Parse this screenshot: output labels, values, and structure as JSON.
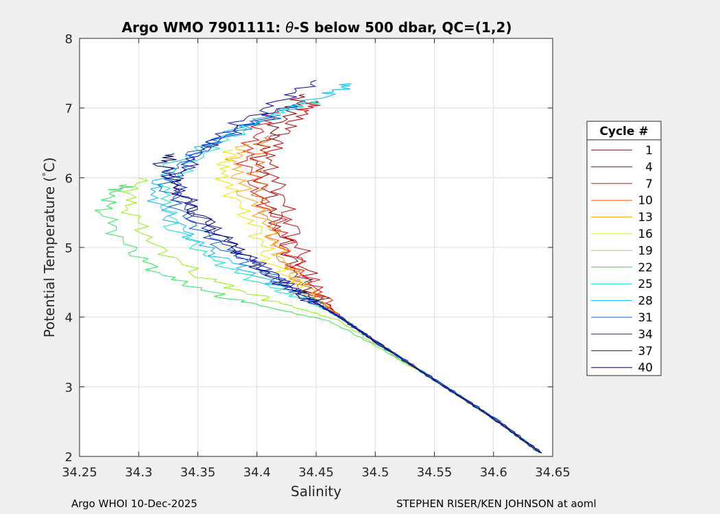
{
  "chart_data": {
    "type": "line",
    "title": "Argo WMO 7901111: θ-S below 500 dbar,  QC=(1,2)",
    "title_parts": {
      "prefix": "Argo WMO 7901111: ",
      "theta": "θ",
      "suffix": "-S below 500 dbar,  QC=(1,2)"
    },
    "xlabel": "Salinity",
    "ylabel": "Potential Temperature (",
    "ylabel_degree": "°",
    "ylabel_unit": "C)",
    "xlim": [
      34.25,
      34.65
    ],
    "ylim": [
      2,
      8
    ],
    "xticks": [
      34.25,
      34.3,
      34.35,
      34.4,
      34.45,
      34.5,
      34.55,
      34.6,
      34.65
    ],
    "xtick_labels": [
      "34.25",
      "34.3",
      "34.35",
      "34.4",
      "34.45",
      "34.5",
      "34.55",
      "34.6",
      "34.65"
    ],
    "yticks": [
      2,
      3,
      4,
      5,
      6,
      7,
      8
    ],
    "ytick_labels": [
      "2",
      "3",
      "4",
      "5",
      "6",
      "7",
      "8"
    ],
    "grid": true,
    "legend_placement": "outside-right",
    "legend_title": "Cycle #",
    "legend": [
      {
        "label": "1",
        "color": "#7f0000"
      },
      {
        "label": "4",
        "color": "#c40000"
      },
      {
        "label": "7",
        "color": "#ff0000"
      },
      {
        "label": "10",
        "color": "#ff5a00"
      },
      {
        "label": "13",
        "color": "#ffa000"
      },
      {
        "label": "16",
        "color": "#e6e600"
      },
      {
        "label": "19",
        "color": "#8cf000"
      },
      {
        "label": "22",
        "color": "#28e650"
      },
      {
        "label": "25",
        "color": "#00e6c8"
      },
      {
        "label": "28",
        "color": "#00b4ff"
      },
      {
        "label": "31",
        "color": "#0064dc"
      },
      {
        "label": "34",
        "color": "#0a28d2"
      },
      {
        "label": "37",
        "color": "#0a0aa0"
      },
      {
        "label": "40",
        "color": "#000064"
      }
    ],
    "series": [
      {
        "name": "1",
        "color": "#7f0000",
        "x": [
          34.64,
          34.6,
          34.55,
          34.5,
          34.47,
          34.45,
          34.43,
          34.42,
          34.41,
          34.4,
          34.41,
          34.43,
          34.44
        ],
        "y": [
          2.05,
          2.55,
          3.1,
          3.65,
          4.0,
          4.3,
          4.7,
          5.2,
          5.7,
          6.2,
          6.6,
          7.0,
          7.2
        ]
      },
      {
        "name": "4",
        "color": "#c40000",
        "x": [
          34.64,
          34.6,
          34.55,
          34.5,
          34.47,
          34.45,
          34.44,
          34.43,
          34.42,
          34.41,
          34.42,
          34.44,
          34.45
        ],
        "y": [
          2.05,
          2.55,
          3.1,
          3.65,
          4.0,
          4.35,
          4.75,
          5.25,
          5.75,
          6.25,
          6.6,
          6.95,
          7.1
        ]
      },
      {
        "name": "7",
        "color": "#ff0000",
        "x": [
          34.64,
          34.6,
          34.55,
          34.5,
          34.47,
          34.45,
          34.43,
          34.42,
          34.4,
          34.39,
          34.4,
          34.42
        ],
        "y": [
          2.05,
          2.55,
          3.1,
          3.65,
          4.0,
          4.4,
          4.85,
          5.3,
          5.8,
          6.3,
          6.7,
          7.0
        ]
      },
      {
        "name": "10",
        "color": "#ff5a00",
        "x": [
          34.64,
          34.6,
          34.55,
          34.5,
          34.47,
          34.44,
          34.42,
          34.41,
          34.4,
          34.4,
          34.41
        ],
        "y": [
          2.05,
          2.55,
          3.1,
          3.65,
          4.0,
          4.4,
          4.9,
          5.4,
          5.9,
          6.3,
          6.6
        ]
      },
      {
        "name": "13",
        "color": "#ffa000",
        "x": [
          34.64,
          34.6,
          34.55,
          34.5,
          34.47,
          34.44,
          34.42,
          34.41,
          34.39,
          34.38,
          34.39
        ],
        "y": [
          2.05,
          2.55,
          3.1,
          3.65,
          4.0,
          4.4,
          4.85,
          5.3,
          5.8,
          6.2,
          6.5
        ]
      },
      {
        "name": "16",
        "color": "#e6e600",
        "x": [
          34.64,
          34.6,
          34.55,
          34.5,
          34.47,
          34.44,
          34.41,
          34.4,
          34.38,
          34.37,
          34.38
        ],
        "y": [
          2.05,
          2.55,
          3.1,
          3.65,
          4.0,
          4.4,
          4.8,
          5.25,
          5.7,
          6.1,
          6.4
        ]
      },
      {
        "name": "19",
        "color": "#8cf000",
        "x": [
          34.64,
          34.6,
          34.55,
          34.5,
          34.47,
          34.44,
          34.4,
          34.35,
          34.31,
          34.29,
          34.3
        ],
        "y": [
          2.05,
          2.55,
          3.1,
          3.6,
          3.95,
          4.1,
          4.3,
          4.6,
          5.1,
          5.6,
          6.0
        ]
      },
      {
        "name": "22",
        "color": "#28e650",
        "x": [
          34.64,
          34.6,
          34.55,
          34.5,
          34.46,
          34.42,
          34.37,
          34.32,
          34.29,
          34.27,
          34.28,
          34.29
        ],
        "y": [
          2.05,
          2.55,
          3.1,
          3.6,
          3.95,
          4.1,
          4.3,
          4.6,
          5.0,
          5.5,
          5.8,
          5.9
        ]
      },
      {
        "name": "25",
        "color": "#00e6c8",
        "x": [
          34.64,
          34.6,
          34.55,
          34.5,
          34.47,
          34.44,
          34.4,
          34.36,
          34.33,
          34.32,
          34.35,
          34.39,
          34.43,
          34.45
        ],
        "y": [
          2.05,
          2.55,
          3.1,
          3.65,
          4.0,
          4.25,
          4.5,
          4.85,
          5.3,
          5.8,
          6.3,
          6.7,
          7.0,
          7.1
        ]
      },
      {
        "name": "28",
        "color": "#00b4ff",
        "x": [
          34.64,
          34.6,
          34.55,
          34.5,
          34.47,
          34.44,
          34.4,
          34.36,
          34.33,
          34.31,
          34.33,
          34.37,
          34.41,
          34.46,
          34.48
        ],
        "y": [
          2.05,
          2.55,
          3.1,
          3.65,
          4.0,
          4.3,
          4.6,
          4.95,
          5.35,
          5.8,
          6.2,
          6.6,
          6.9,
          7.2,
          7.35
        ]
      },
      {
        "name": "31",
        "color": "#0064dc",
        "x": [
          34.64,
          34.6,
          34.55,
          34.5,
          34.47,
          34.44,
          34.41,
          34.37,
          34.34,
          34.32,
          34.34,
          34.38,
          34.42
        ],
        "y": [
          2.05,
          2.55,
          3.1,
          3.65,
          4.0,
          4.3,
          4.6,
          5.0,
          5.45,
          5.9,
          6.3,
          6.65,
          6.9
        ]
      },
      {
        "name": "34",
        "color": "#0a28d2",
        "x": [
          34.64,
          34.6,
          34.55,
          34.5,
          34.47,
          34.44,
          34.41,
          34.37,
          34.34,
          34.33,
          34.35,
          34.39,
          34.43
        ],
        "y": [
          2.05,
          2.55,
          3.1,
          3.65,
          4.0,
          4.3,
          4.65,
          5.05,
          5.5,
          5.95,
          6.35,
          6.75,
          7.05
        ]
      },
      {
        "name": "37",
        "color": "#0a0aa0",
        "x": [
          34.64,
          34.6,
          34.55,
          34.5,
          34.47,
          34.44,
          34.41,
          34.38,
          34.35,
          34.33,
          34.35,
          34.38,
          34.42,
          34.45
        ],
        "y": [
          2.05,
          2.55,
          3.1,
          3.65,
          4.0,
          4.3,
          4.65,
          5.05,
          5.5,
          5.95,
          6.35,
          6.75,
          7.1,
          7.4
        ]
      },
      {
        "name": "40",
        "color": "#000064",
        "x": [
          34.64,
          34.6,
          34.55,
          34.5,
          34.47,
          34.44,
          34.41,
          34.38,
          34.35,
          34.33,
          34.32,
          34.33
        ],
        "y": [
          2.05,
          2.55,
          3.1,
          3.65,
          4.0,
          4.3,
          4.6,
          5.0,
          5.45,
          5.9,
          6.2,
          6.35
        ]
      }
    ]
  },
  "footer": {
    "left": "Argo WHOI 10-Dec-2025",
    "right": "STEPHEN RISER/KEN JOHNSON at aoml"
  }
}
